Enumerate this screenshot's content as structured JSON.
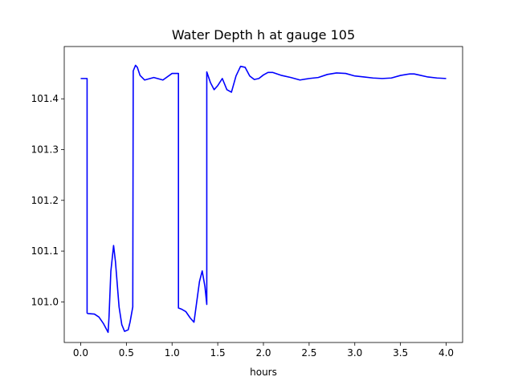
{
  "chart_data": {
    "type": "line",
    "title": "Water Depth h at gauge 105",
    "xlabel": "hours",
    "ylabel": "",
    "xlim": [
      -0.18,
      4.18
    ],
    "ylim": [
      100.92,
      101.503
    ],
    "grid": false,
    "xticks": [
      0.0,
      0.5,
      1.0,
      1.5,
      2.0,
      2.5,
      3.0,
      3.5,
      4.0
    ],
    "xtick_labels": [
      "0.0",
      "0.5",
      "1.0",
      "1.5",
      "2.0",
      "2.5",
      "3.0",
      "3.5",
      "4.0"
    ],
    "yticks": [
      101.0,
      101.1,
      101.2,
      101.3,
      101.4
    ],
    "ytick_labels": [
      "101.0",
      "101.1",
      "101.2",
      "101.3",
      "101.4"
    ],
    "series": [
      {
        "color": "#0000ff",
        "x": [
          0.0,
          0.07,
          0.07,
          0.08,
          0.15,
          0.2,
          0.25,
          0.3,
          0.31,
          0.33,
          0.36,
          0.38,
          0.42,
          0.45,
          0.48,
          0.52,
          0.54,
          0.57,
          0.575,
          0.6,
          0.62,
          0.65,
          0.7,
          0.8,
          0.9,
          1.0,
          1.07,
          1.07,
          1.1,
          1.15,
          1.2,
          1.24,
          1.3,
          1.33,
          1.36,
          1.38,
          1.38,
          1.42,
          1.46,
          1.5,
          1.55,
          1.6,
          1.65,
          1.7,
          1.75,
          1.8,
          1.85,
          1.9,
          1.95,
          2.0,
          2.05,
          2.1,
          2.2,
          2.3,
          2.4,
          2.5,
          2.6,
          2.7,
          2.8,
          2.9,
          3.0,
          3.1,
          3.2,
          3.3,
          3.4,
          3.5,
          3.6,
          3.65,
          3.7,
          3.8,
          3.9,
          4.0
        ],
        "y": [
          101.44,
          101.44,
          100.978,
          100.977,
          100.976,
          100.97,
          100.957,
          100.94,
          100.97,
          101.06,
          101.111,
          101.08,
          100.99,
          100.955,
          100.942,
          100.945,
          100.96,
          100.99,
          101.455,
          101.466,
          101.462,
          101.446,
          101.437,
          101.442,
          101.437,
          101.45,
          101.45,
          100.988,
          100.986,
          100.981,
          100.968,
          100.96,
          101.04,
          101.061,
          101.03,
          100.995,
          101.453,
          101.432,
          101.418,
          101.426,
          101.44,
          101.418,
          101.413,
          101.445,
          101.464,
          101.462,
          101.445,
          101.438,
          101.44,
          101.447,
          101.452,
          101.452,
          101.446,
          101.442,
          101.437,
          101.44,
          101.442,
          101.448,
          101.451,
          101.45,
          101.445,
          101.443,
          101.441,
          101.44,
          101.441,
          101.446,
          101.449,
          101.449,
          101.447,
          101.443,
          101.441,
          101.44
        ]
      }
    ]
  }
}
